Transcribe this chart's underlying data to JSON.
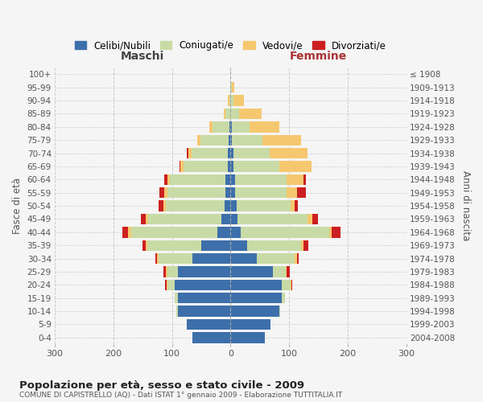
{
  "age_groups": [
    "100+",
    "95-99",
    "90-94",
    "85-89",
    "80-84",
    "75-79",
    "70-74",
    "65-69",
    "60-64",
    "55-59",
    "50-54",
    "45-49",
    "40-44",
    "35-39",
    "30-34",
    "25-29",
    "20-24",
    "15-19",
    "10-14",
    "5-9",
    "0-4"
  ],
  "birth_years": [
    "≤ 1908",
    "1909-1913",
    "1914-1918",
    "1919-1923",
    "1924-1928",
    "1929-1933",
    "1934-1938",
    "1939-1943",
    "1944-1948",
    "1949-1953",
    "1954-1958",
    "1959-1963",
    "1964-1968",
    "1969-1973",
    "1974-1978",
    "1979-1983",
    "1984-1988",
    "1989-1993",
    "1994-1998",
    "1999-2003",
    "2004-2008"
  ],
  "maschi": {
    "celibi": [
      0,
      0,
      0,
      0,
      2,
      3,
      5,
      5,
      8,
      8,
      10,
      15,
      22,
      50,
      65,
      90,
      95,
      90,
      90,
      75,
      65
    ],
    "coniugati": [
      0,
      0,
      2,
      8,
      28,
      48,
      62,
      75,
      95,
      100,
      100,
      125,
      148,
      92,
      58,
      18,
      12,
      5,
      2,
      0,
      0
    ],
    "vedovi": [
      0,
      0,
      2,
      3,
      6,
      6,
      5,
      5,
      5,
      5,
      5,
      5,
      5,
      3,
      2,
      2,
      2,
      0,
      0,
      0,
      0
    ],
    "divorziati": [
      0,
      0,
      0,
      0,
      0,
      0,
      2,
      2,
      5,
      8,
      8,
      8,
      10,
      5,
      3,
      5,
      3,
      0,
      0,
      0,
      0
    ]
  },
  "femmine": {
    "nubili": [
      0,
      0,
      0,
      0,
      2,
      3,
      5,
      5,
      8,
      8,
      10,
      12,
      18,
      28,
      45,
      72,
      88,
      88,
      83,
      68,
      58
    ],
    "coniugate": [
      0,
      2,
      5,
      15,
      30,
      52,
      62,
      78,
      88,
      88,
      92,
      120,
      150,
      92,
      65,
      22,
      14,
      5,
      2,
      0,
      0
    ],
    "vedove": [
      0,
      5,
      18,
      38,
      52,
      65,
      65,
      55,
      28,
      18,
      8,
      8,
      5,
      5,
      3,
      2,
      2,
      0,
      0,
      0,
      0
    ],
    "divorziate": [
      0,
      0,
      0,
      0,
      0,
      0,
      0,
      0,
      5,
      15,
      5,
      10,
      15,
      8,
      3,
      5,
      2,
      0,
      0,
      0,
      0
    ]
  },
  "colors": {
    "celibi": "#3d6faa",
    "coniugati": "#c8dba6",
    "vedovi": "#f5c870",
    "divorziati": "#cc2020"
  },
  "xlim": 300,
  "title": "Popolazione per età, sesso e stato civile - 2009",
  "subtitle": "COMUNE DI CAPISTRELLO (AQ) - Dati ISTAT 1° gennaio 2009 - Elaborazione TUTTITALIA.IT",
  "ylabel_left": "Fasce di età",
  "ylabel_right": "Anni di nascita",
  "legend_labels": [
    "Celibi/Nubili",
    "Coniugati/e",
    "Vedovi/e",
    "Divorziati/e"
  ],
  "maschi_label": "Maschi",
  "femmine_label": "Femmine",
  "bg_color": "#f5f5f5",
  "grid_color": "#cccccc"
}
